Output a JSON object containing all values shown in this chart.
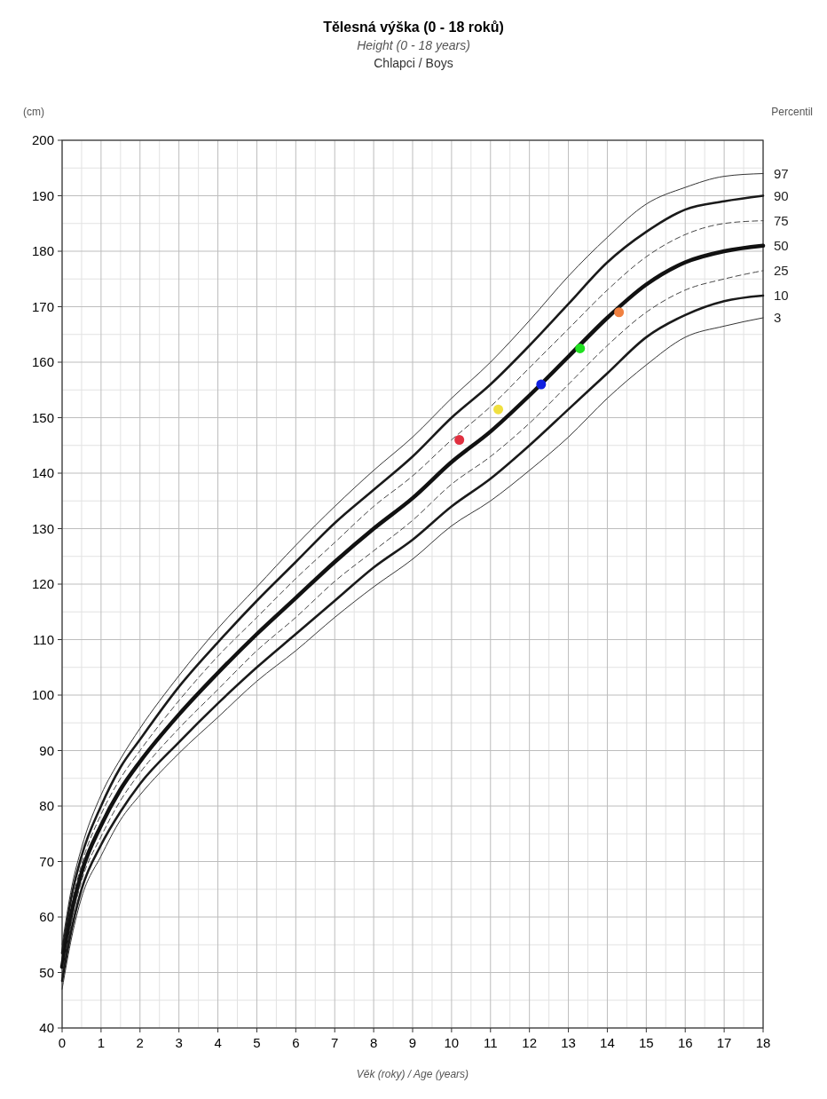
{
  "chart_data": {
    "type": "line",
    "title": "Tělesná výška (0 - 18 roků)",
    "subtitle": "Height (0 - 18 years)",
    "annotations": [
      "Chlapci / Boys"
    ],
    "xlabel": "Věk (roky) / Age (years)",
    "ylabel": "(cm)",
    "legend_title": "Percentil",
    "x": [
      0,
      0.25,
      0.5,
      1,
      1.5,
      2,
      3,
      4,
      5,
      6,
      7,
      8,
      9,
      10,
      11,
      12,
      13,
      14,
      15,
      16,
      17,
      18
    ],
    "xlim": [
      0,
      18
    ],
    "xticks": [
      0,
      1,
      2,
      3,
      4,
      5,
      6,
      7,
      8,
      9,
      10,
      11,
      12,
      13,
      14,
      15,
      16,
      17,
      18
    ],
    "ylim": [
      40,
      200
    ],
    "yticks": [
      40,
      50,
      60,
      70,
      80,
      90,
      100,
      110,
      120,
      130,
      140,
      150,
      160,
      170,
      180,
      190,
      200
    ],
    "grid": true,
    "marker": "none",
    "series": [
      {
        "name": "97",
        "color": "#333333",
        "line_style": "solid",
        "values": [
          55,
          65.5,
          72.5,
          82,
          88.5,
          94,
          103.5,
          112,
          119.5,
          127,
          134,
          140.5,
          146.5,
          153.5,
          160,
          167.5,
          175.5,
          182.5,
          188.5,
          191.5,
          193.5,
          194
        ]
      },
      {
        "name": "90",
        "color": "#1a1a1a",
        "line_style": "solid",
        "values": [
          53.5,
          64,
          71,
          80,
          87,
          92,
          101.5,
          109.5,
          117,
          124,
          131,
          137,
          143,
          150,
          156,
          163,
          170.5,
          178,
          183.5,
          187.5,
          189,
          190
        ]
      },
      {
        "name": "75",
        "color": "#444444",
        "line_style": "dashed",
        "values": [
          52.5,
          62.5,
          69.5,
          78.5,
          85,
          90,
          99,
          107,
          114,
          121,
          127.5,
          134,
          139.5,
          146,
          152,
          159,
          166,
          173,
          179,
          183,
          185,
          185.5
        ]
      },
      {
        "name": "50",
        "color": "#111111",
        "line_style": "solid",
        "values": [
          51,
          61,
          68,
          76.5,
          83,
          88,
          96.5,
          104,
          111,
          117.5,
          124,
          130,
          135.5,
          142,
          147.5,
          154,
          161,
          168,
          174,
          178,
          180,
          181
        ]
      },
      {
        "name": "25",
        "color": "#444444",
        "line_style": "dashed",
        "values": [
          49.5,
          59.5,
          66.5,
          74.5,
          81,
          86,
          94,
          101,
          108,
          114,
          120.5,
          126,
          131.5,
          138,
          143,
          149,
          156,
          163,
          169,
          173,
          175,
          176.5
        ]
      },
      {
        "name": "10",
        "color": "#1a1a1a",
        "line_style": "solid",
        "values": [
          48.5,
          58,
          65,
          73,
          79,
          84,
          91.5,
          98.5,
          105,
          111,
          117,
          123,
          128,
          134,
          139,
          145,
          151.5,
          158,
          164.5,
          168.5,
          171,
          172
        ]
      },
      {
        "name": "3",
        "color": "#333333",
        "line_style": "solid",
        "values": [
          47,
          56.5,
          63.5,
          71,
          77.5,
          82,
          89.5,
          96,
          102.5,
          108,
          114,
          119.5,
          124.5,
          130.5,
          135,
          140.5,
          146.5,
          153.5,
          159.5,
          164.5,
          166.5,
          168
        ]
      },
      {
        "type": "scatter",
        "marker": "circle",
        "x": [
          10.2,
          11.2,
          12.3,
          13.3,
          14.3
        ],
        "values": [
          146,
          151.5,
          156,
          162.5,
          169
        ],
        "colors": [
          "#e03040",
          "#f0e040",
          "#1020e0",
          "#20e020",
          "#f08040"
        ]
      }
    ]
  }
}
